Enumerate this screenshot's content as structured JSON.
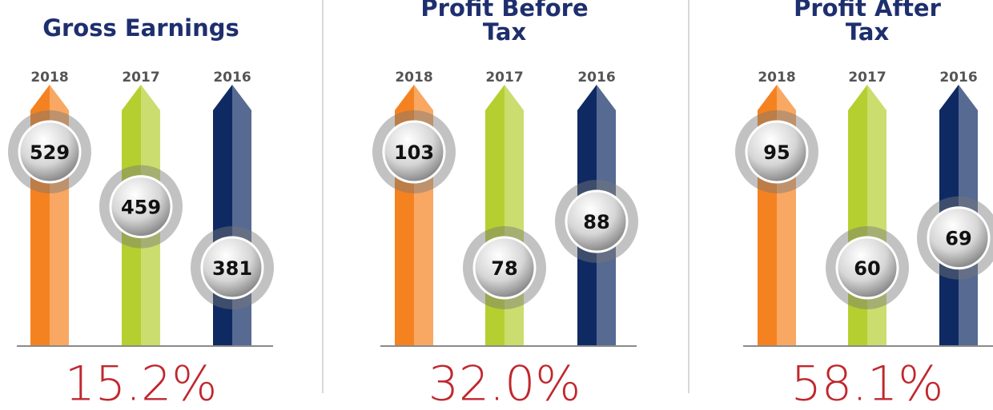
{
  "chart_data": [
    {
      "type": "bar",
      "title": "Gross Earnings",
      "categories": [
        "2018",
        "2017",
        "2016"
      ],
      "values": [
        529,
        459,
        381
      ],
      "colors": [
        "#f58220",
        "#b5cf30",
        "#0f2a63"
      ],
      "annotation": "15.2%"
    },
    {
      "type": "bar",
      "title": "Profit Before Tax",
      "categories": [
        "2018",
        "2017",
        "2016"
      ],
      "values": [
        103,
        78,
        88
      ],
      "colors": [
        "#f58220",
        "#b5cf30",
        "#0f2a63"
      ],
      "annotation": "32.0%"
    },
    {
      "type": "bar",
      "title": "Profit After Tax",
      "categories": [
        "2018",
        "2017",
        "2016"
      ],
      "values": [
        95,
        60,
        69
      ],
      "colors": [
        "#f58220",
        "#b5cf30",
        "#0f2a63"
      ],
      "annotation": "58.1%"
    }
  ]
}
